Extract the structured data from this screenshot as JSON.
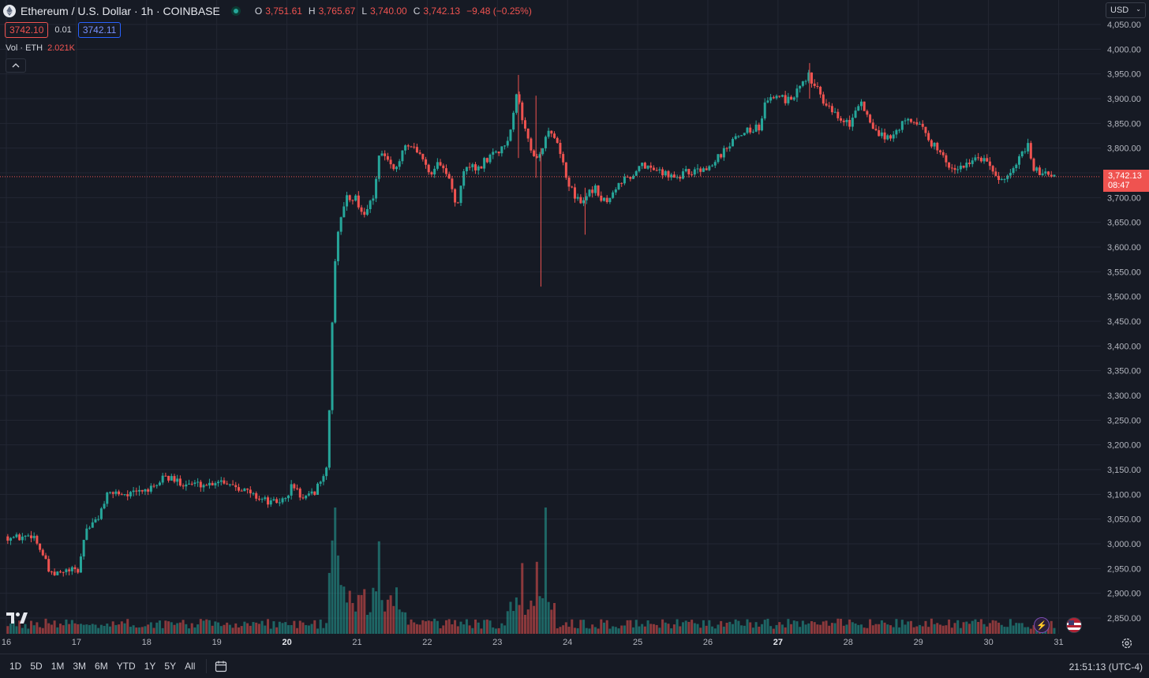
{
  "header": {
    "title": "Ethereum / U.S. Dollar · 1h · COINBASE",
    "ohlc": [
      {
        "k": "O",
        "v": "3,751.61"
      },
      {
        "k": "H",
        "v": "3,765.67"
      },
      {
        "k": "L",
        "v": "3,740.00"
      },
      {
        "k": "C",
        "v": "3,742.13"
      }
    ],
    "change": "−9.48 (−0.25%)"
  },
  "quote": {
    "sell": "3742.10",
    "spread": "0.01",
    "buy": "3742.11"
  },
  "volume_legend": {
    "label": "Vol · ETH",
    "value": "2.021K"
  },
  "currency": "USD",
  "last_price": {
    "price": "3,742.13",
    "countdown": "08:47"
  },
  "footer": {
    "ranges": [
      "1D",
      "5D",
      "1M",
      "3M",
      "6M",
      "YTD",
      "1Y",
      "5Y",
      "All"
    ],
    "clock": "21:51:13 (UTC-4)"
  },
  "icons": {
    "logo": "tradingview-logo",
    "calendar": "calendar-icon",
    "settings": "gear-icon",
    "flash": "flash-icon",
    "market": "us-flag-icon"
  },
  "colors": {
    "up": "#26a69a",
    "down": "#ef5350",
    "background": "#161a24",
    "grid": "#232733"
  },
  "chart_data": {
    "type": "candlestick",
    "interval": "1h",
    "x_tick_labels": [
      "16",
      "17",
      "18",
      "19",
      "20",
      "21",
      "22",
      "23",
      "24",
      "25",
      "26",
      "27",
      "28",
      "29",
      "30",
      "31"
    ],
    "bold_x_ticks": [
      "20",
      "27"
    ],
    "y_tick_labels": [
      "4,050.00",
      "4,000.00",
      "3,950.00",
      "3,900.00",
      "3,850.00",
      "3,800.00",
      "3,750.00",
      "3,700.00",
      "3,650.00",
      "3,600.00",
      "3,550.00",
      "3,500.00",
      "3,450.00",
      "3,400.00",
      "3,350.00",
      "3,300.00",
      "3,250.00",
      "3,200.00",
      "3,150.00",
      "3,100.00",
      "3,050.00",
      "3,000.00",
      "2,950.00",
      "2,900.00",
      "2,850.00"
    ],
    "ylim": [
      2830,
      4060
    ],
    "x_range_days": [
      16.0,
      31.0
    ],
    "last_price_value": 3742.13,
    "price_path": [
      [
        16.0,
        3015
      ],
      [
        16.2,
        3012
      ],
      [
        16.4,
        3020
      ],
      [
        16.55,
        2975
      ],
      [
        16.65,
        2935
      ],
      [
        16.9,
        2945
      ],
      [
        17.05,
        2945
      ],
      [
        17.15,
        3030
      ],
      [
        17.3,
        3045
      ],
      [
        17.45,
        3095
      ],
      [
        17.55,
        3105
      ],
      [
        17.8,
        3100
      ],
      [
        18.0,
        3110
      ],
      [
        18.15,
        3110
      ],
      [
        18.25,
        3138
      ],
      [
        18.4,
        3128
      ],
      [
        18.6,
        3122
      ],
      [
        18.9,
        3120
      ],
      [
        19.05,
        3130
      ],
      [
        19.3,
        3118
      ],
      [
        19.55,
        3098
      ],
      [
        19.8,
        3082
      ],
      [
        20.0,
        3090
      ],
      [
        20.1,
        3120
      ],
      [
        20.25,
        3090
      ],
      [
        20.4,
        3100
      ],
      [
        20.5,
        3130
      ],
      [
        20.6,
        3150
      ],
      [
        20.65,
        3400
      ],
      [
        20.72,
        3600
      ],
      [
        20.85,
        3700
      ],
      [
        21.0,
        3700
      ],
      [
        21.1,
        3660
      ],
      [
        21.25,
        3700
      ],
      [
        21.35,
        3800
      ],
      [
        21.55,
        3750
      ],
      [
        21.7,
        3810
      ],
      [
        21.9,
        3790
      ],
      [
        22.05,
        3750
      ],
      [
        22.2,
        3770
      ],
      [
        22.35,
        3730
      ],
      [
        22.45,
        3680
      ],
      [
        22.55,
        3760
      ],
      [
        22.75,
        3760
      ],
      [
        22.95,
        3790
      ],
      [
        23.1,
        3800
      ],
      [
        23.2,
        3830
      ],
      [
        23.3,
        3920
      ],
      [
        23.4,
        3840
      ],
      [
        23.5,
        3800
      ],
      [
        23.6,
        3780
      ],
      [
        23.75,
        3830
      ],
      [
        23.9,
        3800
      ],
      [
        24.05,
        3720
      ],
      [
        24.2,
        3690
      ],
      [
        24.4,
        3720
      ],
      [
        24.55,
        3690
      ],
      [
        24.75,
        3730
      ],
      [
        24.9,
        3740
      ],
      [
        25.05,
        3770
      ],
      [
        25.2,
        3760
      ],
      [
        25.4,
        3750
      ],
      [
        25.6,
        3745
      ],
      [
        25.8,
        3755
      ],
      [
        26.0,
        3760
      ],
      [
        26.15,
        3780
      ],
      [
        26.3,
        3800
      ],
      [
        26.5,
        3830
      ],
      [
        26.65,
        3840
      ],
      [
        26.75,
        3840
      ],
      [
        26.85,
        3900
      ],
      [
        27.0,
        3910
      ],
      [
        27.15,
        3895
      ],
      [
        27.35,
        3920
      ],
      [
        27.45,
        3950
      ],
      [
        27.55,
        3925
      ],
      [
        27.7,
        3890
      ],
      [
        27.9,
        3860
      ],
      [
        28.05,
        3850
      ],
      [
        28.2,
        3900
      ],
      [
        28.35,
        3840
      ],
      [
        28.6,
        3820
      ],
      [
        28.8,
        3850
      ],
      [
        28.95,
        3860
      ],
      [
        29.1,
        3840
      ],
      [
        29.2,
        3810
      ],
      [
        29.35,
        3790
      ],
      [
        29.5,
        3760
      ],
      [
        29.65,
        3760
      ],
      [
        29.85,
        3780
      ],
      [
        30.0,
        3780
      ],
      [
        30.1,
        3740
      ],
      [
        30.2,
        3730
      ],
      [
        30.35,
        3760
      ],
      [
        30.5,
        3790
      ],
      [
        30.58,
        3810
      ],
      [
        30.65,
        3760
      ],
      [
        30.75,
        3748
      ],
      [
        30.92,
        3742
      ]
    ],
    "wicks": [
      {
        "day": 23.3,
        "low": 3780,
        "high": 3948
      },
      {
        "day": 23.55,
        "low": 3740,
        "high": 3906
      },
      {
        "day": 23.62,
        "low": 3520,
        "high": 3800
      },
      {
        "day": 24.25,
        "low": 3625,
        "high": 3720
      },
      {
        "day": 27.45,
        "low": 3900,
        "high": 3972
      }
    ],
    "volume_peaks": [
      {
        "day": 20.65,
        "value": 1.0
      },
      {
        "day": 20.72,
        "value": 0.62
      },
      {
        "day": 23.35,
        "value": 0.56
      },
      {
        "day": 23.65,
        "value": 1.0
      },
      {
        "day": 23.55,
        "value": 0.57
      }
    ]
  }
}
